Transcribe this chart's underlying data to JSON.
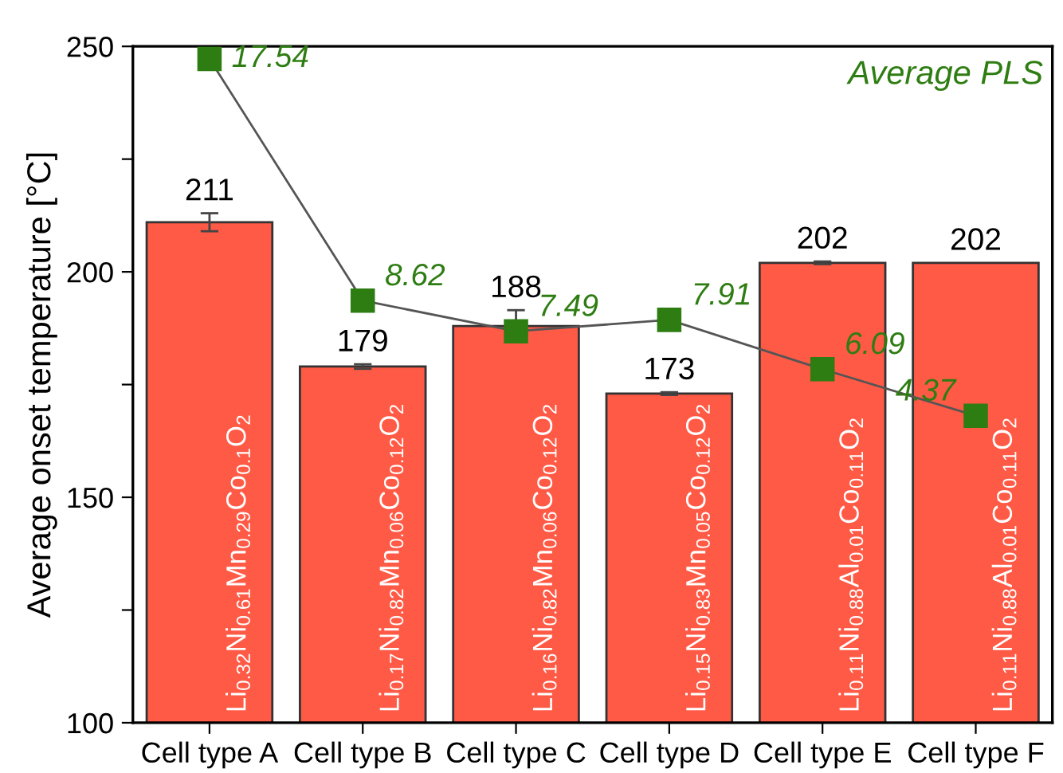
{
  "chart_data": {
    "type": "bar",
    "ylabel": "Average onset temperature [°C]",
    "categories": [
      "Cell type A",
      "Cell type B",
      "Cell type C",
      "Cell type D",
      "Cell type E",
      "Cell type F"
    ],
    "ylim": [
      100,
      250
    ],
    "yticks": [
      100,
      {
        "value": 125,
        "label": null
      },
      150,
      {
        "value": 175,
        "label": null
      },
      200,
      {
        "value": 225,
        "label": null
      },
      250
    ],
    "data_labels": true,
    "grid": false,
    "series": [
      {
        "color": "#ff5a46",
        "values": [
          211,
          179,
          188,
          173,
          202,
          202
        ],
        "errors": [
          2,
          0.5,
          3.5,
          0.3,
          0.3,
          null
        ]
      },
      {
        "type": "line",
        "name": "Average PLS",
        "color": "#2e7d12",
        "axis": "y2",
        "marker": "square",
        "values": [
          17.54,
          8.62,
          7.49,
          7.91,
          6.09,
          4.37
        ]
      }
    ],
    "annotations": [
      "Li$_{0.32}$Ni$_{0.61}$Mn$_{0.29}$Co$_{0.1}$O$_{2}$",
      "Li$_{0.17}$Ni$_{0.82}$Mn$_{0.06}$Co$_{0.12}$O$_{2}$",
      "Li$_{0.16}$Ni$_{0.82}$Mn$_{0.06}$Co$_{0.12}$O$_{2}$",
      "Li$_{0.15}$Ni$_{0.83}$Mn$_{0.05}$Co$_{0.12}$O$_{2}$",
      "Li$_{0.11}$Ni$_{0.88}$Al$_{0.01}$Co$_{0.11}$O$_{2}$",
      "Li$_{0.11}$Ni$_{0.88}$Al$_{0.01}$Co$_{0.11}$O$_{2}$"
    ]
  }
}
